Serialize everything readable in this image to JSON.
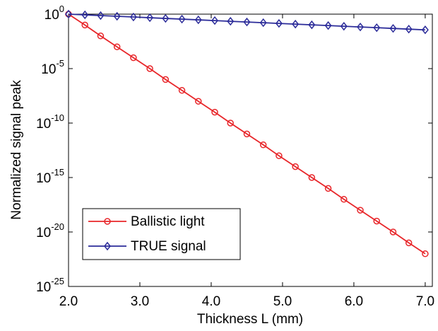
{
  "chart_data": {
    "type": "line",
    "x_label": "Thickness L (mm)",
    "y_label": "Normalized signal peak",
    "x": [
      2.0,
      2.23,
      2.45,
      2.68,
      2.91,
      3.14,
      3.36,
      3.59,
      3.82,
      4.05,
      4.27,
      4.5,
      4.73,
      4.95,
      5.18,
      5.41,
      5.64,
      5.86,
      6.09,
      6.32,
      6.55,
      6.77,
      7.0
    ],
    "series": [
      {
        "name": "Ballistic light",
        "color": "#e8262a",
        "marker": "circle",
        "values": [
          1,
          0.1,
          0.01,
          0.001,
          0.0001,
          1e-05,
          1e-06,
          1e-07,
          1e-08,
          1e-09,
          1e-10,
          1e-11,
          1e-12,
          1e-13,
          1e-14,
          1e-15,
          1e-16,
          1e-17,
          1e-18,
          1e-19,
          1e-20,
          1e-21,
          1e-22
        ]
      },
      {
        "name": "TRUE signal",
        "color": "#2b2b99",
        "marker": "diamond",
        "values": [
          1,
          0.86,
          0.74,
          0.636,
          0.547,
          0.47,
          0.405,
          0.348,
          0.299,
          0.257,
          0.221,
          0.19,
          0.164,
          0.141,
          0.121,
          0.104,
          0.0896,
          0.077,
          0.0662,
          0.057,
          0.049,
          0.042,
          0.036
        ]
      }
    ],
    "xlim": [
      2.0,
      7.1
    ],
    "xticks": [
      {
        "value": 2,
        "label": "2.0"
      },
      {
        "value": 3,
        "label": "3.0"
      },
      {
        "value": 4,
        "label": "4.0"
      },
      {
        "value": 5,
        "label": "5.0"
      },
      {
        "value": 6,
        "label": "6.0"
      },
      {
        "value": 7,
        "label": "7.0"
      }
    ],
    "ylim": [
      1e-25,
      1
    ],
    "yticks": [
      {
        "value": 1,
        "label": "10^0"
      },
      {
        "value": 1e-05,
        "label": "10^-5"
      },
      {
        "value": 1e-10,
        "label": "10^-10"
      },
      {
        "value": 1e-15,
        "label": "10^-15"
      },
      {
        "value": 1e-20,
        "label": "10^-20"
      },
      {
        "value": 1e-25,
        "label": "10^-25"
      }
    ],
    "y_scale": "log",
    "grid": false,
    "legend": "lower left"
  }
}
